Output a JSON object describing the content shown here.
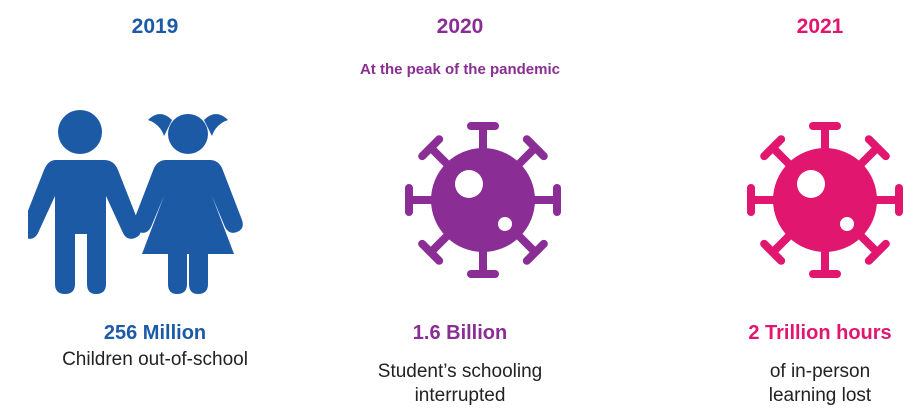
{
  "colors": {
    "blue": "#1d5aa6",
    "purple": "#8a2d94",
    "pink": "#e0166f",
    "body_text": "#222222"
  },
  "columns": [
    {
      "year": "2019",
      "subtitle": "",
      "icon": "children-icon",
      "stat": "256 Million",
      "description": "Children out-of-school"
    },
    {
      "year": "2020",
      "subtitle": "At the peak of the pandemic",
      "icon": "virus-icon",
      "stat": "1.6 Billion",
      "description_lines": [
        "Student’s schooling",
        "interrupted"
      ]
    },
    {
      "year": "2021",
      "subtitle": "",
      "icon": "virus-icon",
      "stat": "2 Trillion hours",
      "description_lines": [
        "of in-person",
        "learning lost"
      ]
    }
  ]
}
